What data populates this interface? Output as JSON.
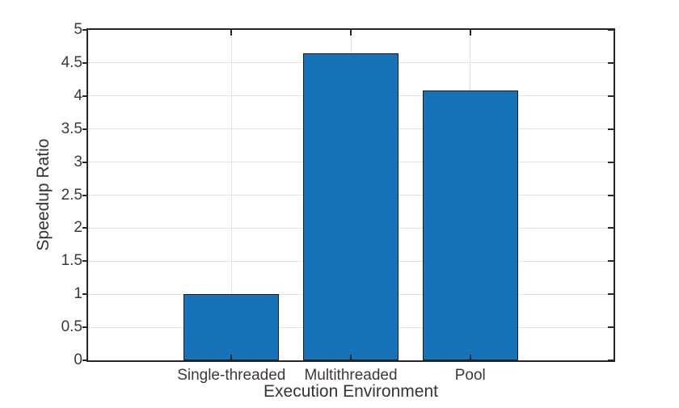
{
  "chart_data": {
    "type": "bar",
    "title": "",
    "categories": [
      "Single-threaded",
      "Multithreaded",
      "Pool"
    ],
    "values": [
      1.0,
      4.65,
      4.08
    ],
    "x_positions": [
      1,
      2,
      3
    ],
    "xlim": [
      -0.2,
      4.2
    ],
    "ylim": [
      0,
      5
    ],
    "ytick_step": 0.5,
    "ytick_labels": [
      "0",
      "0.5",
      "1",
      "1.5",
      "2",
      "2.5",
      "3",
      "3.5",
      "4",
      "4.5",
      "5"
    ],
    "xlabel": "Execution Environment",
    "ylabel": "Speedup Ratio",
    "bar_width": 0.8,
    "grid": true,
    "legend": "none",
    "colors": {
      "bar_face": "#1673b8",
      "bar_edge": "#1a1a1a",
      "axis": "#262626",
      "grid": "#e2e2e2",
      "text": "#3a3a3a",
      "background": "#ffffff"
    }
  }
}
